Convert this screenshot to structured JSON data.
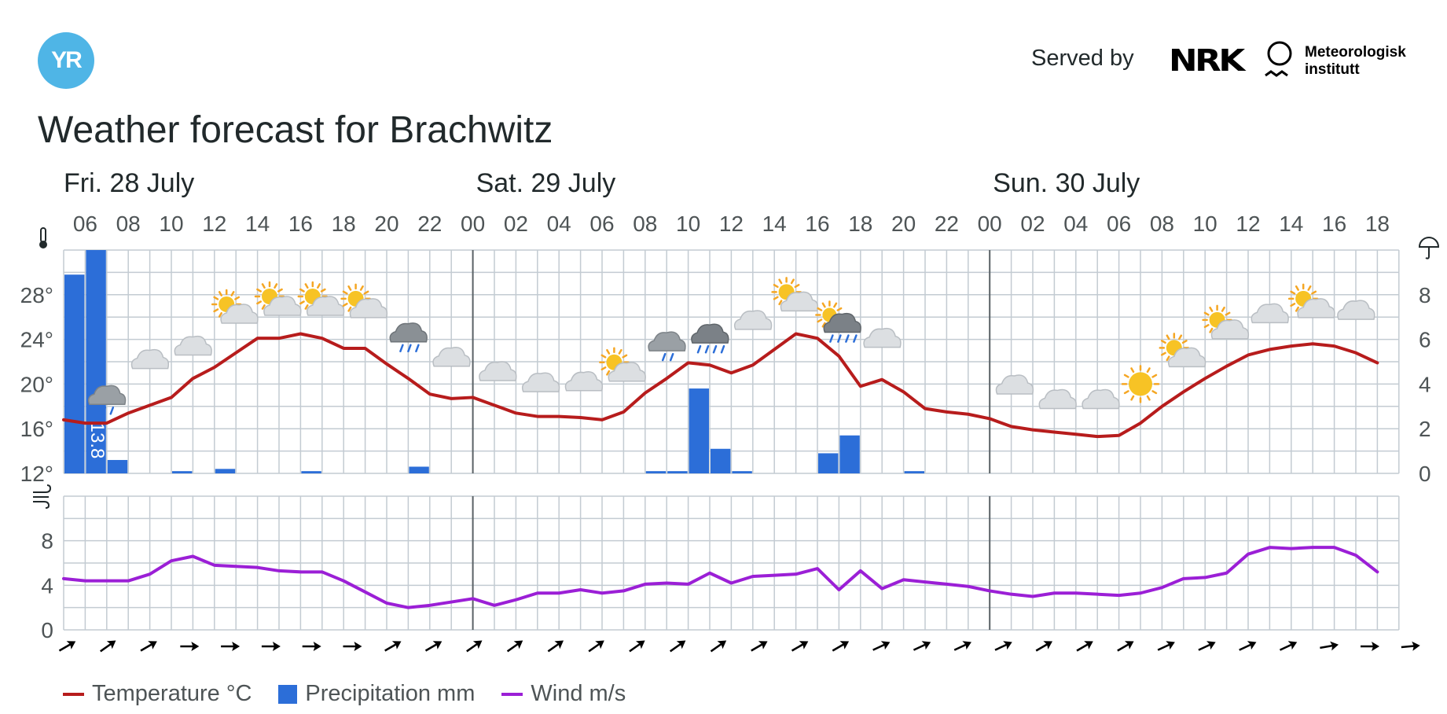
{
  "header": {
    "logo_text": "YR",
    "served_by": "Served by",
    "nrk_logo": "NRK",
    "met_line1": "Meteorologisk",
    "met_line2": "institutt"
  },
  "title": "Weather forecast for Brachwitz",
  "colors": {
    "temperature": "#b71c1c",
    "precipitation": "#2c6ed8",
    "wind": "#9b1fd6",
    "grid": "#c3cbd2",
    "day_divider": "#5a6266",
    "logo": "#4fb5e6"
  },
  "legend": {
    "temperature": "Temperature °C",
    "precipitation": "Precipitation mm",
    "wind": "Wind m/s"
  },
  "chart_data": {
    "type": "line",
    "x_unit": "hour",
    "days": [
      {
        "label": "Fri. 28 July",
        "start_hour": 6
      },
      {
        "label": "Sat. 29 July",
        "start_hour": 24
      },
      {
        "label": "Sun. 30 July",
        "start_hour": 48
      }
    ],
    "x_range": [
      5,
      67
    ],
    "hour_tick_labels": [
      "06",
      "08",
      "10",
      "12",
      "14",
      "16",
      "18",
      "20",
      "22",
      "00",
      "02",
      "04",
      "06",
      "08",
      "10",
      "12",
      "14",
      "16",
      "18",
      "20",
      "22",
      "00",
      "02",
      "04",
      "06",
      "08",
      "10",
      "12",
      "14",
      "16",
      "18"
    ],
    "temperature": {
      "y_axis_labels": [
        "28°",
        "24°",
        "20°",
        "16°",
        "12°"
      ],
      "ylim": [
        12,
        32
      ],
      "points": [
        [
          5,
          16.8
        ],
        [
          6,
          16.5
        ],
        [
          7,
          16.5
        ],
        [
          8,
          17.4
        ],
        [
          9,
          18.1
        ],
        [
          10,
          18.8
        ],
        [
          11,
          20.5
        ],
        [
          12,
          21.5
        ],
        [
          13,
          22.8
        ],
        [
          14,
          24.1
        ],
        [
          15,
          24.1
        ],
        [
          16,
          24.5
        ],
        [
          17,
          24.1
        ],
        [
          18,
          23.2
        ],
        [
          19,
          23.2
        ],
        [
          20,
          21.8
        ],
        [
          21,
          20.5
        ],
        [
          22,
          19.1
        ],
        [
          23,
          18.7
        ],
        [
          24,
          18.8
        ],
        [
          25,
          18.1
        ],
        [
          26,
          17.4
        ],
        [
          27,
          17.1
        ],
        [
          28,
          17.1
        ],
        [
          29,
          17.0
        ],
        [
          30,
          16.8
        ],
        [
          31,
          17.5
        ],
        [
          32,
          19.2
        ],
        [
          33,
          20.5
        ],
        [
          34,
          21.9
        ],
        [
          35,
          21.7
        ],
        [
          36,
          21.0
        ],
        [
          37,
          21.7
        ],
        [
          38,
          23.1
        ],
        [
          39,
          24.5
        ],
        [
          40,
          24.1
        ],
        [
          41,
          22.5
        ],
        [
          42,
          19.8
        ],
        [
          43,
          20.4
        ],
        [
          44,
          19.3
        ],
        [
          45,
          17.8
        ],
        [
          46,
          17.5
        ],
        [
          47,
          17.3
        ],
        [
          48,
          16.9
        ],
        [
          49,
          16.2
        ],
        [
          50,
          15.9
        ],
        [
          51,
          15.7
        ],
        [
          52,
          15.5
        ],
        [
          53,
          15.3
        ],
        [
          54,
          15.4
        ],
        [
          55,
          16.5
        ],
        [
          56,
          18.0
        ],
        [
          57,
          19.3
        ],
        [
          58,
          20.5
        ],
        [
          59,
          21.6
        ],
        [
          60,
          22.6
        ],
        [
          61,
          23.1
        ],
        [
          62,
          23.4
        ],
        [
          63,
          23.6
        ],
        [
          64,
          23.4
        ],
        [
          65,
          22.8
        ],
        [
          66,
          21.9
        ]
      ]
    },
    "precipitation": {
      "y_axis_labels": [
        "8",
        "6",
        "4",
        "2",
        "0"
      ],
      "ylim": [
        0,
        10
      ],
      "bars": [
        [
          5,
          8.9
        ],
        [
          6,
          13.8
        ],
        [
          7,
          0.6
        ],
        [
          10,
          0.1
        ],
        [
          12,
          0.2
        ],
        [
          16,
          0.1
        ],
        [
          21,
          0.3
        ],
        [
          32,
          0.1
        ],
        [
          33,
          0.1
        ],
        [
          34,
          3.8
        ],
        [
          35,
          1.1
        ],
        [
          36,
          0.1
        ],
        [
          40,
          0.9
        ],
        [
          41,
          1.7
        ],
        [
          44,
          0.1
        ]
      ],
      "data_labels": [
        {
          "hour": 6,
          "text": "13.8"
        }
      ]
    },
    "wind": {
      "y_axis_labels": [
        "8",
        "4",
        "0"
      ],
      "ylim": [
        0,
        12
      ],
      "points": [
        [
          5,
          4.6
        ],
        [
          6,
          4.4
        ],
        [
          7,
          4.4
        ],
        [
          8,
          4.4
        ],
        [
          9,
          5.0
        ],
        [
          10,
          6.2
        ],
        [
          11,
          6.6
        ],
        [
          12,
          5.8
        ],
        [
          13,
          5.7
        ],
        [
          14,
          5.6
        ],
        [
          15,
          5.3
        ],
        [
          16,
          5.2
        ],
        [
          17,
          5.2
        ],
        [
          18,
          4.4
        ],
        [
          19,
          3.4
        ],
        [
          20,
          2.4
        ],
        [
          21,
          2.0
        ],
        [
          22,
          2.2
        ],
        [
          23,
          2.5
        ],
        [
          24,
          2.8
        ],
        [
          25,
          2.2
        ],
        [
          26,
          2.7
        ],
        [
          27,
          3.3
        ],
        [
          28,
          3.3
        ],
        [
          29,
          3.6
        ],
        [
          30,
          3.3
        ],
        [
          31,
          3.5
        ],
        [
          32,
          4.1
        ],
        [
          33,
          4.2
        ],
        [
          34,
          4.1
        ],
        [
          35,
          5.1
        ],
        [
          36,
          4.2
        ],
        [
          37,
          4.8
        ],
        [
          38,
          4.9
        ],
        [
          39,
          5.0
        ],
        [
          40,
          5.5
        ],
        [
          41,
          3.6
        ],
        [
          42,
          5.3
        ],
        [
          43,
          3.7
        ],
        [
          44,
          4.5
        ],
        [
          45,
          4.3
        ],
        [
          46,
          4.1
        ],
        [
          47,
          3.9
        ],
        [
          48,
          3.5
        ],
        [
          49,
          3.2
        ],
        [
          50,
          3.0
        ],
        [
          51,
          3.3
        ],
        [
          52,
          3.3
        ],
        [
          53,
          3.2
        ],
        [
          54,
          3.1
        ],
        [
          55,
          3.3
        ],
        [
          56,
          3.8
        ],
        [
          57,
          4.6
        ],
        [
          58,
          4.7
        ],
        [
          59,
          5.1
        ],
        [
          60,
          6.8
        ],
        [
          61,
          7.4
        ],
        [
          62,
          7.3
        ],
        [
          63,
          7.4
        ],
        [
          64,
          7.4
        ],
        [
          65,
          6.7
        ],
        [
          66,
          5.2
        ]
      ]
    },
    "weather_icons": [
      {
        "hour": 7,
        "icon": "cloud-light-rain-icon",
        "temp": 18.6
      },
      {
        "hour": 9,
        "icon": "cloud-icon",
        "temp": 22.1
      },
      {
        "hour": 11,
        "icon": "cloud-icon",
        "temp": 23.3
      },
      {
        "hour": 13,
        "icon": "partly-cloudy-day-icon",
        "temp": 26.3
      },
      {
        "hour": 15,
        "icon": "partly-cloudy-day-icon",
        "temp": 27.0
      },
      {
        "hour": 17,
        "icon": "partly-cloudy-day-icon",
        "temp": 27.0
      },
      {
        "hour": 19,
        "icon": "partly-cloudy-day-icon",
        "temp": 26.8
      },
      {
        "hour": 21,
        "icon": "cloud-rain-icon",
        "temp": 24.2
      },
      {
        "hour": 23,
        "icon": "cloud-icon",
        "temp": 22.3
      },
      {
        "hour": 25,
        "icon": "partly-cloudy-night-icon",
        "temp": 21.3
      },
      {
        "hour": 27,
        "icon": "partly-cloudy-night-icon",
        "temp": 20.3
      },
      {
        "hour": 29,
        "icon": "partly-cloudy-night-icon",
        "temp": 20.4
      },
      {
        "hour": 31,
        "icon": "partly-cloudy-day-icon",
        "temp": 21.1
      },
      {
        "hour": 33,
        "icon": "cloud-light-rain-icon",
        "temp": 23.4
      },
      {
        "hour": 35,
        "icon": "cloud-heavy-rain-icon",
        "temp": 24.1
      },
      {
        "hour": 37,
        "icon": "cloud-icon",
        "temp": 25.6
      },
      {
        "hour": 39,
        "icon": "partly-cloudy-day-icon",
        "temp": 27.4
      },
      {
        "hour": 41,
        "icon": "partly-cloudy-rain-icon",
        "temp": 25.2
      },
      {
        "hour": 43,
        "icon": "cloud-icon",
        "temp": 24.0
      },
      {
        "hour": 45,
        "icon": "moon-icon",
        "temp": 22.2
      },
      {
        "hour": 47,
        "icon": "moon-icon",
        "temp": 20.8
      },
      {
        "hour": 49,
        "icon": "partly-cloudy-night-icon",
        "temp": 20.1
      },
      {
        "hour": 51,
        "icon": "partly-cloudy-night-icon",
        "temp": 18.8
      },
      {
        "hour": 53,
        "icon": "partly-cloudy-night-icon",
        "temp": 18.8
      },
      {
        "hour": 55,
        "icon": "sun-icon",
        "temp": 20.0
      },
      {
        "hour": 57,
        "icon": "partly-cloudy-day-icon",
        "temp": 22.4
      },
      {
        "hour": 59,
        "icon": "partly-cloudy-day-icon",
        "temp": 24.9
      },
      {
        "hour": 61,
        "icon": "cloud-icon",
        "temp": 26.2
      },
      {
        "hour": 63,
        "icon": "partly-cloudy-day-icon",
        "temp": 26.8
      },
      {
        "hour": 65,
        "icon": "cloud-icon",
        "temp": 26.5
      }
    ],
    "wind_directions_deg": [
      60,
      55,
      60,
      90,
      90,
      90,
      90,
      90,
      60,
      60,
      55,
      55,
      55,
      55,
      55,
      55,
      55,
      60,
      60,
      60,
      65,
      65,
      65,
      65,
      60,
      60,
      60,
      65,
      65,
      65,
      65,
      80,
      90,
      85
    ]
  }
}
